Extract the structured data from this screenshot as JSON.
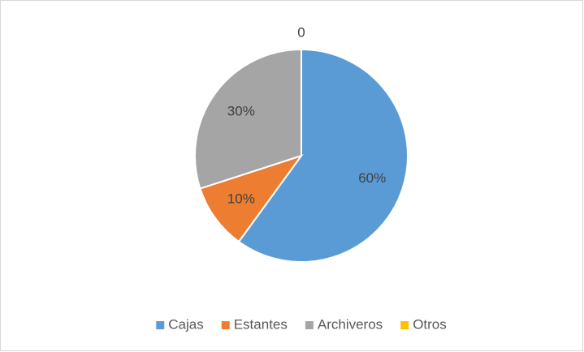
{
  "chart_data": {
    "type": "pie",
    "categories": [
      "Cajas",
      "Estantes",
      "Archiveros",
      "Otros"
    ],
    "values": [
      60,
      10,
      30,
      0
    ],
    "value_labels": [
      "60%",
      "10%",
      "30%",
      "0"
    ],
    "colors": [
      "#5b9bd5",
      "#ed7d31",
      "#a5a5a5",
      "#ffc000"
    ],
    "legend": "bottom"
  }
}
